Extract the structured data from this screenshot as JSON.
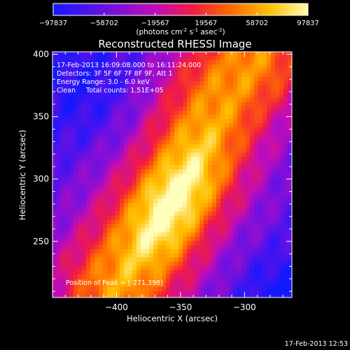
{
  "chart_data": {
    "type": "heatmap",
    "title": "Reconstructed RHESSI Image",
    "xlabel": "Heliocentric X (arcsec)",
    "ylabel": "Heliocentric Y (arcsec)",
    "xlim": [
      -450,
      -263
    ],
    "ylim": [
      205,
      402
    ],
    "xticks": [
      -400,
      -350,
      -300
    ],
    "yticks": [
      250,
      300,
      350,
      400
    ],
    "colorbar": {
      "range": [
        -97837,
        97837
      ],
      "ticks": [
        "-97837",
        "-58702",
        "-19567",
        "19567",
        "58702",
        "97837"
      ],
      "unit_prefix": "(photons cm",
      "unit_exp1": "-2",
      "unit_mid": " s",
      "unit_exp2": "-1",
      "unit_suffix": " asec",
      "unit_exp3": "-2",
      "unit_close": ")"
    },
    "annotations": [
      "17-Feb-2013 16:09:08.000 to 16:11:24.000",
      "Detectors: 3F 5F 6F 7F 8F 9F, Att 1",
      "Energy Range: 3.0 - 6.0 keV",
      "Clean     Total counts: 1.51E+05"
    ],
    "peak_label": "Position of Peak = [-271,398]",
    "peak": [
      -271,
      398
    ],
    "ridge": [
      {
        "x": -400,
        "y": 214
      },
      {
        "x": -377,
        "y": 250
      },
      {
        "x": -355,
        "y": 288
      },
      {
        "x": -345,
        "y": 305
      },
      {
        "x": -332,
        "y": 335
      },
      {
        "x": -315,
        "y": 370
      },
      {
        "x": -295,
        "y": 395
      }
    ],
    "grid": false
  },
  "timestamp": "17-Feb-2013 12:53",
  "colors": {
    "background": "#000000",
    "text": "#ffffff",
    "colormap": [
      "#1418ff",
      "#7a10e8",
      "#c40cc0",
      "#f01a4a",
      "#ff5a00",
      "#ffb400",
      "#ffff80",
      "#ffffff"
    ]
  }
}
